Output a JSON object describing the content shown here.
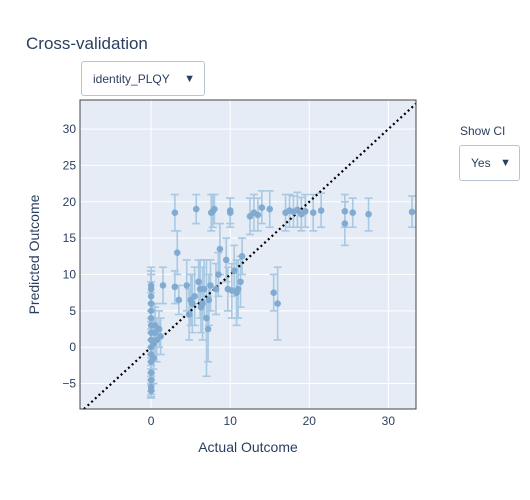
{
  "title": "Cross-validation",
  "model_dropdown": {
    "selected": "identity_PLQY",
    "arrow": "▼"
  },
  "ci_control": {
    "label": "Show CI",
    "selected": "Yes",
    "arrow": "▼"
  },
  "colors": {
    "plot_bg": "#e5ecf6",
    "grid": "#ffffff",
    "point": "#7ea9d0",
    "error_bar": "#a9c8e2",
    "diagonal": "#000000"
  },
  "chart_data": {
    "type": "scatter",
    "xlabel": "Actual Outcome",
    "ylabel": "Predicted Outcome",
    "xlim": [
      -9,
      33.5
    ],
    "ylim": [
      -8.5,
      34
    ],
    "xticks": [
      0,
      10,
      20,
      30
    ],
    "yticks": [
      -5,
      0,
      5,
      10,
      15,
      20,
      25,
      30
    ],
    "xtick_labels": [
      "0",
      "10",
      "20",
      "30"
    ],
    "ytick_labels": [
      "−5",
      "0",
      "5",
      "10",
      "15",
      "20",
      "25",
      "30"
    ],
    "grid": true,
    "reference_line": "y = x (dotted)",
    "error_bars": true,
    "points": [
      {
        "x": 0,
        "y": -6,
        "lo": -6.8,
        "hi": -5.2
      },
      {
        "x": 0,
        "y": -5.5,
        "lo": -7,
        "hi": -4
      },
      {
        "x": 0,
        "y": -4.5,
        "lo": -6.5,
        "hi": -2.5
      },
      {
        "x": 0,
        "y": -3.5,
        "lo": -6,
        "hi": -1
      },
      {
        "x": 0,
        "y": -2,
        "lo": -5,
        "hi": 1
      },
      {
        "x": 0,
        "y": -1,
        "lo": -4.5,
        "hi": 2.5
      },
      {
        "x": 0,
        "y": 0,
        "lo": -3.5,
        "hi": 3.5
      },
      {
        "x": 0,
        "y": 1,
        "lo": -3,
        "hi": 5
      },
      {
        "x": 0,
        "y": 2,
        "lo": -2,
        "hi": 6
      },
      {
        "x": 0,
        "y": 3,
        "lo": -1.5,
        "hi": 7.5
      },
      {
        "x": 0,
        "y": 4,
        "lo": -1,
        "hi": 9
      },
      {
        "x": 0,
        "y": 5,
        "lo": 0,
        "hi": 10
      },
      {
        "x": 0,
        "y": 6,
        "lo": 1,
        "hi": 10.5
      },
      {
        "x": 0,
        "y": 7,
        "lo": 2,
        "hi": 10
      },
      {
        "x": 0,
        "y": 8,
        "lo": 4,
        "hi": 10.5
      },
      {
        "x": 0,
        "y": 8.5,
        "lo": 5,
        "hi": 11
      },
      {
        "x": 0.3,
        "y": 0.5,
        "lo": -3,
        "hi": 4
      },
      {
        "x": 0.3,
        "y": -1.5,
        "lo": -5,
        "hi": 2
      },
      {
        "x": 0.5,
        "y": 2,
        "lo": -1,
        "hi": 5.5
      },
      {
        "x": 0.5,
        "y": 3,
        "lo": 0,
        "hi": 6
      },
      {
        "x": 0.7,
        "y": 1,
        "lo": -2,
        "hi": 4
      },
      {
        "x": 1,
        "y": 2.5,
        "lo": 0,
        "hi": 5
      },
      {
        "x": 1.2,
        "y": 1.5,
        "lo": -1,
        "hi": 4
      },
      {
        "x": 1.5,
        "y": 8.5,
        "lo": 6,
        "hi": 11
      },
      {
        "x": 3,
        "y": 18.5,
        "lo": 16,
        "hi": 21
      },
      {
        "x": 3,
        "y": 8.3,
        "lo": 6,
        "hi": 10.5
      },
      {
        "x": 3.3,
        "y": 13,
        "lo": 10,
        "hi": 16
      },
      {
        "x": 3.5,
        "y": 6.5,
        "lo": 4.5,
        "hi": 8.5
      },
      {
        "x": 4.5,
        "y": 8.5,
        "lo": 5,
        "hi": 12
      },
      {
        "x": 4.8,
        "y": 4.5,
        "lo": 1,
        "hi": 8
      },
      {
        "x": 5,
        "y": 6.5,
        "lo": 3,
        "hi": 10
      },
      {
        "x": 5.2,
        "y": 6,
        "lo": 2,
        "hi": 10
      },
      {
        "x": 5.5,
        "y": 7,
        "lo": 3,
        "hi": 11
      },
      {
        "x": 5.7,
        "y": 19,
        "lo": 17,
        "hi": 21
      },
      {
        "x": 6,
        "y": 9,
        "lo": 6,
        "hi": 12
      },
      {
        "x": 6.2,
        "y": 8,
        "lo": 4,
        "hi": 12
      },
      {
        "x": 6.3,
        "y": 5.5,
        "lo": 2,
        "hi": 9
      },
      {
        "x": 6.5,
        "y": 6,
        "lo": 1,
        "hi": 11
      },
      {
        "x": 6.7,
        "y": 8,
        "lo": 4,
        "hi": 12
      },
      {
        "x": 7,
        "y": 4,
        "lo": -4,
        "hi": 12
      },
      {
        "x": 7.2,
        "y": 2.5,
        "lo": -2,
        "hi": 7
      },
      {
        "x": 7.3,
        "y": 6.5,
        "lo": 3,
        "hi": 10
      },
      {
        "x": 7.5,
        "y": 8.5,
        "lo": 5,
        "hi": 12
      },
      {
        "x": 7.6,
        "y": 18.5,
        "lo": 16,
        "hi": 21
      },
      {
        "x": 7.8,
        "y": 18.7,
        "lo": 16.5,
        "hi": 21
      },
      {
        "x": 8,
        "y": 19,
        "lo": 17,
        "hi": 21
      },
      {
        "x": 8.2,
        "y": 8,
        "lo": 4.5,
        "hi": 11.5
      },
      {
        "x": 8.5,
        "y": 10,
        "lo": 7,
        "hi": 13
      },
      {
        "x": 8.7,
        "y": 13.5,
        "lo": 10,
        "hi": 17
      },
      {
        "x": 9.5,
        "y": 12,
        "lo": 9,
        "hi": 15
      },
      {
        "x": 9.7,
        "y": 8,
        "lo": 5,
        "hi": 11
      },
      {
        "x": 10,
        "y": 18.8,
        "lo": 17,
        "hi": 20.5
      },
      {
        "x": 10,
        "y": 18.5,
        "lo": 16.5,
        "hi": 20.5
      },
      {
        "x": 10.2,
        "y": 7.8,
        "lo": 4,
        "hi": 11.5
      },
      {
        "x": 10.5,
        "y": 10.5,
        "lo": 7,
        "hi": 14
      },
      {
        "x": 10.8,
        "y": 7.5,
        "lo": 3,
        "hi": 12
      },
      {
        "x": 11,
        "y": 8,
        "lo": 4,
        "hi": 12
      },
      {
        "x": 11.3,
        "y": 9,
        "lo": 5.5,
        "hi": 12.5
      },
      {
        "x": 11.5,
        "y": 12.5,
        "lo": 10,
        "hi": 15
      },
      {
        "x": 12.5,
        "y": 18,
        "lo": 15.5,
        "hi": 20.5
      },
      {
        "x": 13,
        "y": 18.5,
        "lo": 16,
        "hi": 21
      },
      {
        "x": 13.5,
        "y": 18.2,
        "lo": 16,
        "hi": 20.5
      },
      {
        "x": 14,
        "y": 19.2,
        "lo": 17,
        "hi": 21.5
      },
      {
        "x": 15,
        "y": 19,
        "lo": 16.5,
        "hi": 21.5
      },
      {
        "x": 15.5,
        "y": 7.5,
        "lo": 5,
        "hi": 10
      },
      {
        "x": 16,
        "y": 6,
        "lo": 1,
        "hi": 11
      },
      {
        "x": 17,
        "y": 18.5,
        "lo": 16,
        "hi": 21
      },
      {
        "x": 17.5,
        "y": 18.8,
        "lo": 16.5,
        "hi": 21
      },
      {
        "x": 18,
        "y": 18.6,
        "lo": 16.5,
        "hi": 20.8
      },
      {
        "x": 18.5,
        "y": 18.9,
        "lo": 16.5,
        "hi": 21.3
      },
      {
        "x": 19,
        "y": 18.3,
        "lo": 16,
        "hi": 20.6
      },
      {
        "x": 19.5,
        "y": 18.7,
        "lo": 16.5,
        "hi": 21
      },
      {
        "x": 20.5,
        "y": 18.5,
        "lo": 16,
        "hi": 21
      },
      {
        "x": 21.5,
        "y": 18.8,
        "lo": 16.5,
        "hi": 21.2
      },
      {
        "x": 24.5,
        "y": 18.7,
        "lo": 16.5,
        "hi": 21
      },
      {
        "x": 24.5,
        "y": 17,
        "lo": 14,
        "hi": 20
      },
      {
        "x": 25.5,
        "y": 18.5,
        "lo": 16.5,
        "hi": 20.5
      },
      {
        "x": 27.5,
        "y": 18.3,
        "lo": 16,
        "hi": 20.5
      },
      {
        "x": 33,
        "y": 18.6,
        "lo": 16.5,
        "hi": 20.8
      }
    ]
  }
}
